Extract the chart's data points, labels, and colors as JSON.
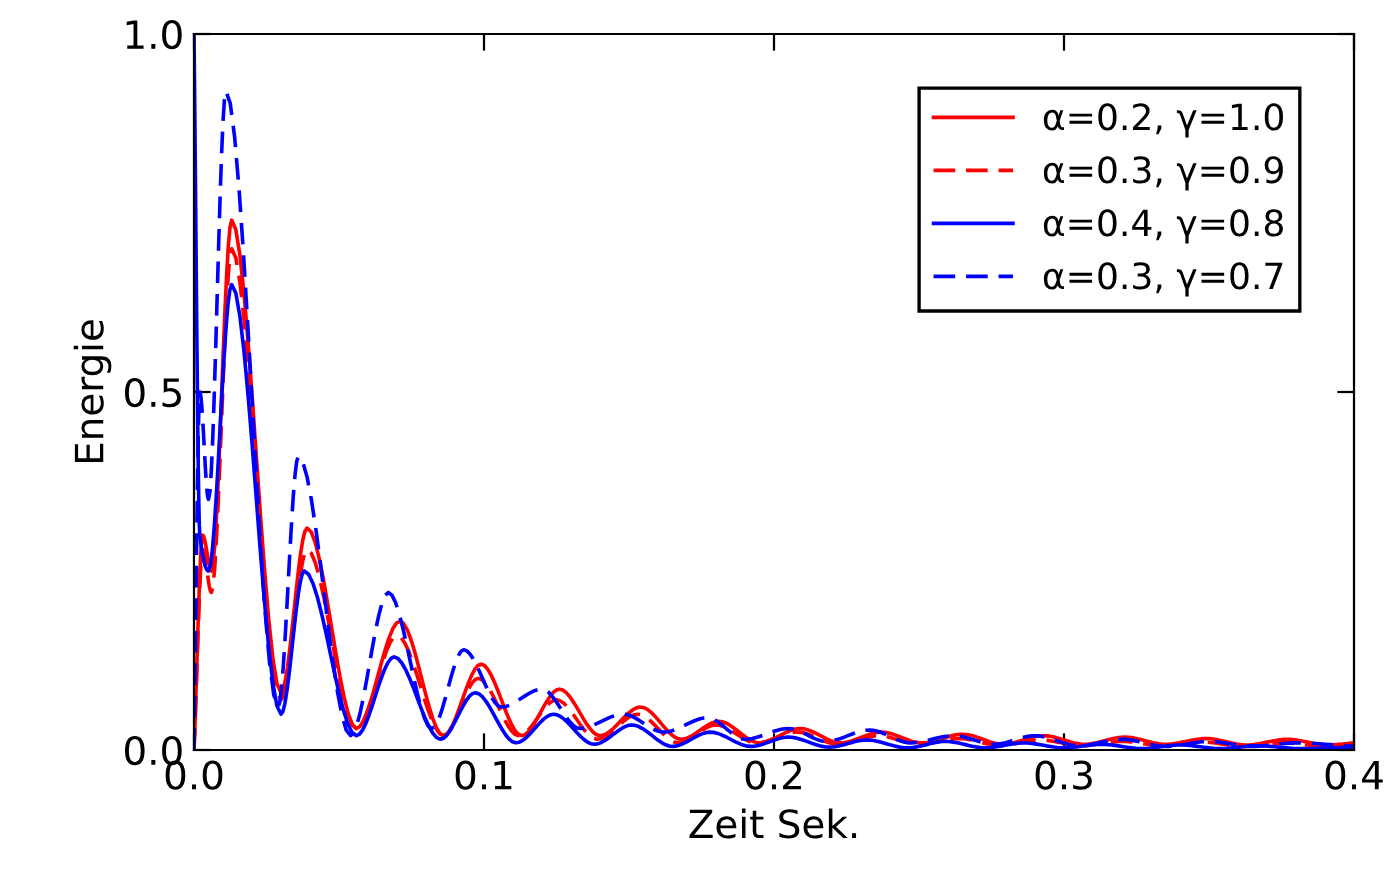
{
  "chart_data": {
    "type": "line",
    "xlabel": "Zeit Sek.",
    "ylabel": "Energie",
    "xlim": [
      0,
      0.4
    ],
    "xticks": [
      {
        "value": 0,
        "label": "0.0"
      },
      0.1,
      0.2,
      0.3,
      0.4
    ],
    "ylim": [
      0,
      1
    ],
    "yticks": [
      {
        "value": 0,
        "label": "0.0"
      },
      0.5,
      {
        "value": 1,
        "label": "1.0"
      }
    ],
    "grid": false,
    "legend": "top right",
    "series": [
      {
        "name": "α=0.2, γ=1.0",
        "color": "#ff0000",
        "line_style": "solid",
        "x": [
          0,
          0.003,
          0.006,
          0.013,
          0.03,
          0.039,
          0.056,
          0.071,
          0.086,
          0.099,
          0.113,
          0.126,
          0.14,
          0.154,
          0.168,
          0.181,
          0.195,
          0.209,
          0.223,
          0.237,
          0.251,
          0.265,
          0.279,
          0.293,
          0.307,
          0.321,
          0.335,
          0.349,
          0.363,
          0.377,
          0.391,
          0.4
        ],
        "values": [
          0,
          0.3,
          0.25,
          0.74,
          0.08,
          0.31,
          0.03,
          0.18,
          0.02,
          0.12,
          0.02,
          0.085,
          0.02,
          0.06,
          0.015,
          0.04,
          0.01,
          0.03,
          0.01,
          0.025,
          0.01,
          0.022,
          0.008,
          0.02,
          0.008,
          0.018,
          0.008,
          0.016,
          0.007,
          0.015,
          0.007,
          0.01
        ]
      },
      {
        "name": "α=0.3, γ=0.9",
        "color": "#ff0000",
        "line_style": "dashed",
        "x": [
          0,
          0.003,
          0.006,
          0.013,
          0.03,
          0.039,
          0.056,
          0.07,
          0.086,
          0.098,
          0.112,
          0.125,
          0.139,
          0.153,
          0.167,
          0.18,
          0.194,
          0.208,
          0.222,
          0.236,
          0.25,
          0.264,
          0.278,
          0.292,
          0.306,
          0.32,
          0.334,
          0.348,
          0.362,
          0.376,
          0.39,
          0.4
        ],
        "values": [
          0,
          0.28,
          0.22,
          0.7,
          0.07,
          0.28,
          0.03,
          0.16,
          0.02,
          0.1,
          0.02,
          0.07,
          0.015,
          0.05,
          0.01,
          0.035,
          0.01,
          0.025,
          0.008,
          0.02,
          0.008,
          0.016,
          0.006,
          0.014,
          0.006,
          0.012,
          0.006,
          0.011,
          0.005,
          0.01,
          0.005,
          0.008
        ]
      },
      {
        "name": "α=0.4, γ=0.8",
        "color": "#0000ff",
        "line_style": "solid",
        "x": [
          0,
          0.002,
          0.005,
          0.013,
          0.03,
          0.038,
          0.056,
          0.069,
          0.085,
          0.097,
          0.111,
          0.124,
          0.138,
          0.151,
          0.165,
          0.178,
          0.192,
          0.205,
          0.219,
          0.232,
          0.246,
          0.259,
          0.273,
          0.286,
          0.3,
          0.313,
          0.327,
          0.34,
          0.354,
          0.367,
          0.381,
          0.4
        ],
        "values": [
          1.0,
          0.3,
          0.25,
          0.65,
          0.05,
          0.25,
          0.02,
          0.13,
          0.015,
          0.08,
          0.01,
          0.05,
          0.008,
          0.035,
          0.005,
          0.025,
          0.005,
          0.018,
          0.004,
          0.014,
          0.003,
          0.012,
          0.003,
          0.01,
          0.003,
          0.008,
          0.002,
          0.007,
          0.002,
          0.006,
          0.002,
          0.004
        ]
      },
      {
        "name": "α=0.3, γ=0.7",
        "color": "#0000ff",
        "line_style": "dashed",
        "x": [
          0,
          0.002,
          0.005,
          0.011,
          0.029,
          0.036,
          0.054,
          0.067,
          0.082,
          0.093,
          0.106,
          0.12,
          0.133,
          0.148,
          0.162,
          0.177,
          0.19,
          0.205,
          0.218,
          0.233,
          0.247,
          0.262,
          0.276,
          0.29,
          0.305,
          0.32,
          0.335,
          0.35,
          0.365,
          0.38,
          0.4
        ],
        "values": [
          0,
          0.5,
          0.35,
          0.92,
          0.06,
          0.41,
          0.02,
          0.22,
          0.03,
          0.14,
          0.06,
          0.085,
          0.03,
          0.05,
          0.025,
          0.045,
          0.015,
          0.03,
          0.012,
          0.028,
          0.01,
          0.02,
          0.008,
          0.02,
          0.006,
          0.015,
          0.005,
          0.012,
          0.005,
          0.01,
          0.005
        ]
      }
    ]
  }
}
